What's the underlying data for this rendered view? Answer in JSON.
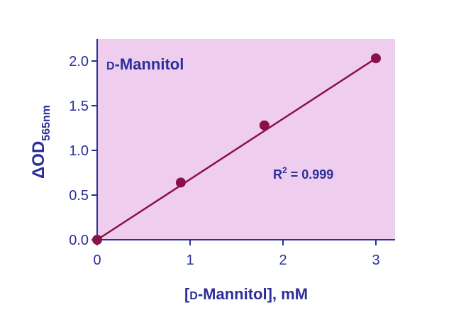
{
  "chart_data": {
    "type": "scatter",
    "title": "D-Mannitol",
    "title_prefix": "D",
    "title_rest": "-Mannitol",
    "xlabel": "[D-Mannitol], mM",
    "xlabel_open": "[",
    "xlabel_prefix": "D",
    "xlabel_rest": "-Mannitol], mM",
    "ylabel": "ΔOD565nm",
    "ylabel_main": "ΔOD",
    "ylabel_sub": "565nm",
    "xlim": [
      0,
      3.2
    ],
    "ylim": [
      0,
      2.2
    ],
    "xticks": [
      0,
      1,
      2,
      3
    ],
    "xtick_labels": [
      "0",
      "1",
      "2",
      "3"
    ],
    "yticks": [
      0,
      0.5,
      1.0,
      1.5,
      2.0
    ],
    "ytick_labels": [
      "0.0",
      "0.5",
      "1.0",
      "1.5",
      "2.0"
    ],
    "series": [
      {
        "x": [
          0,
          0.9,
          1.8,
          3.0
        ],
        "y": [
          0.0,
          0.64,
          1.28,
          2.03
        ]
      }
    ],
    "fit_line": {
      "x": [
        0,
        3.0
      ],
      "y": [
        0.0,
        2.03
      ]
    },
    "annotation": "R2 = 0.999",
    "annotation_main": "R",
    "annotation_sup": "2",
    "annotation_rest": " = 0.999",
    "colors": {
      "plot_background": "#efcdef",
      "marker": "#8a1048",
      "line": "#8a1048",
      "text": "#2b2f9a"
    },
    "grid": false
  }
}
